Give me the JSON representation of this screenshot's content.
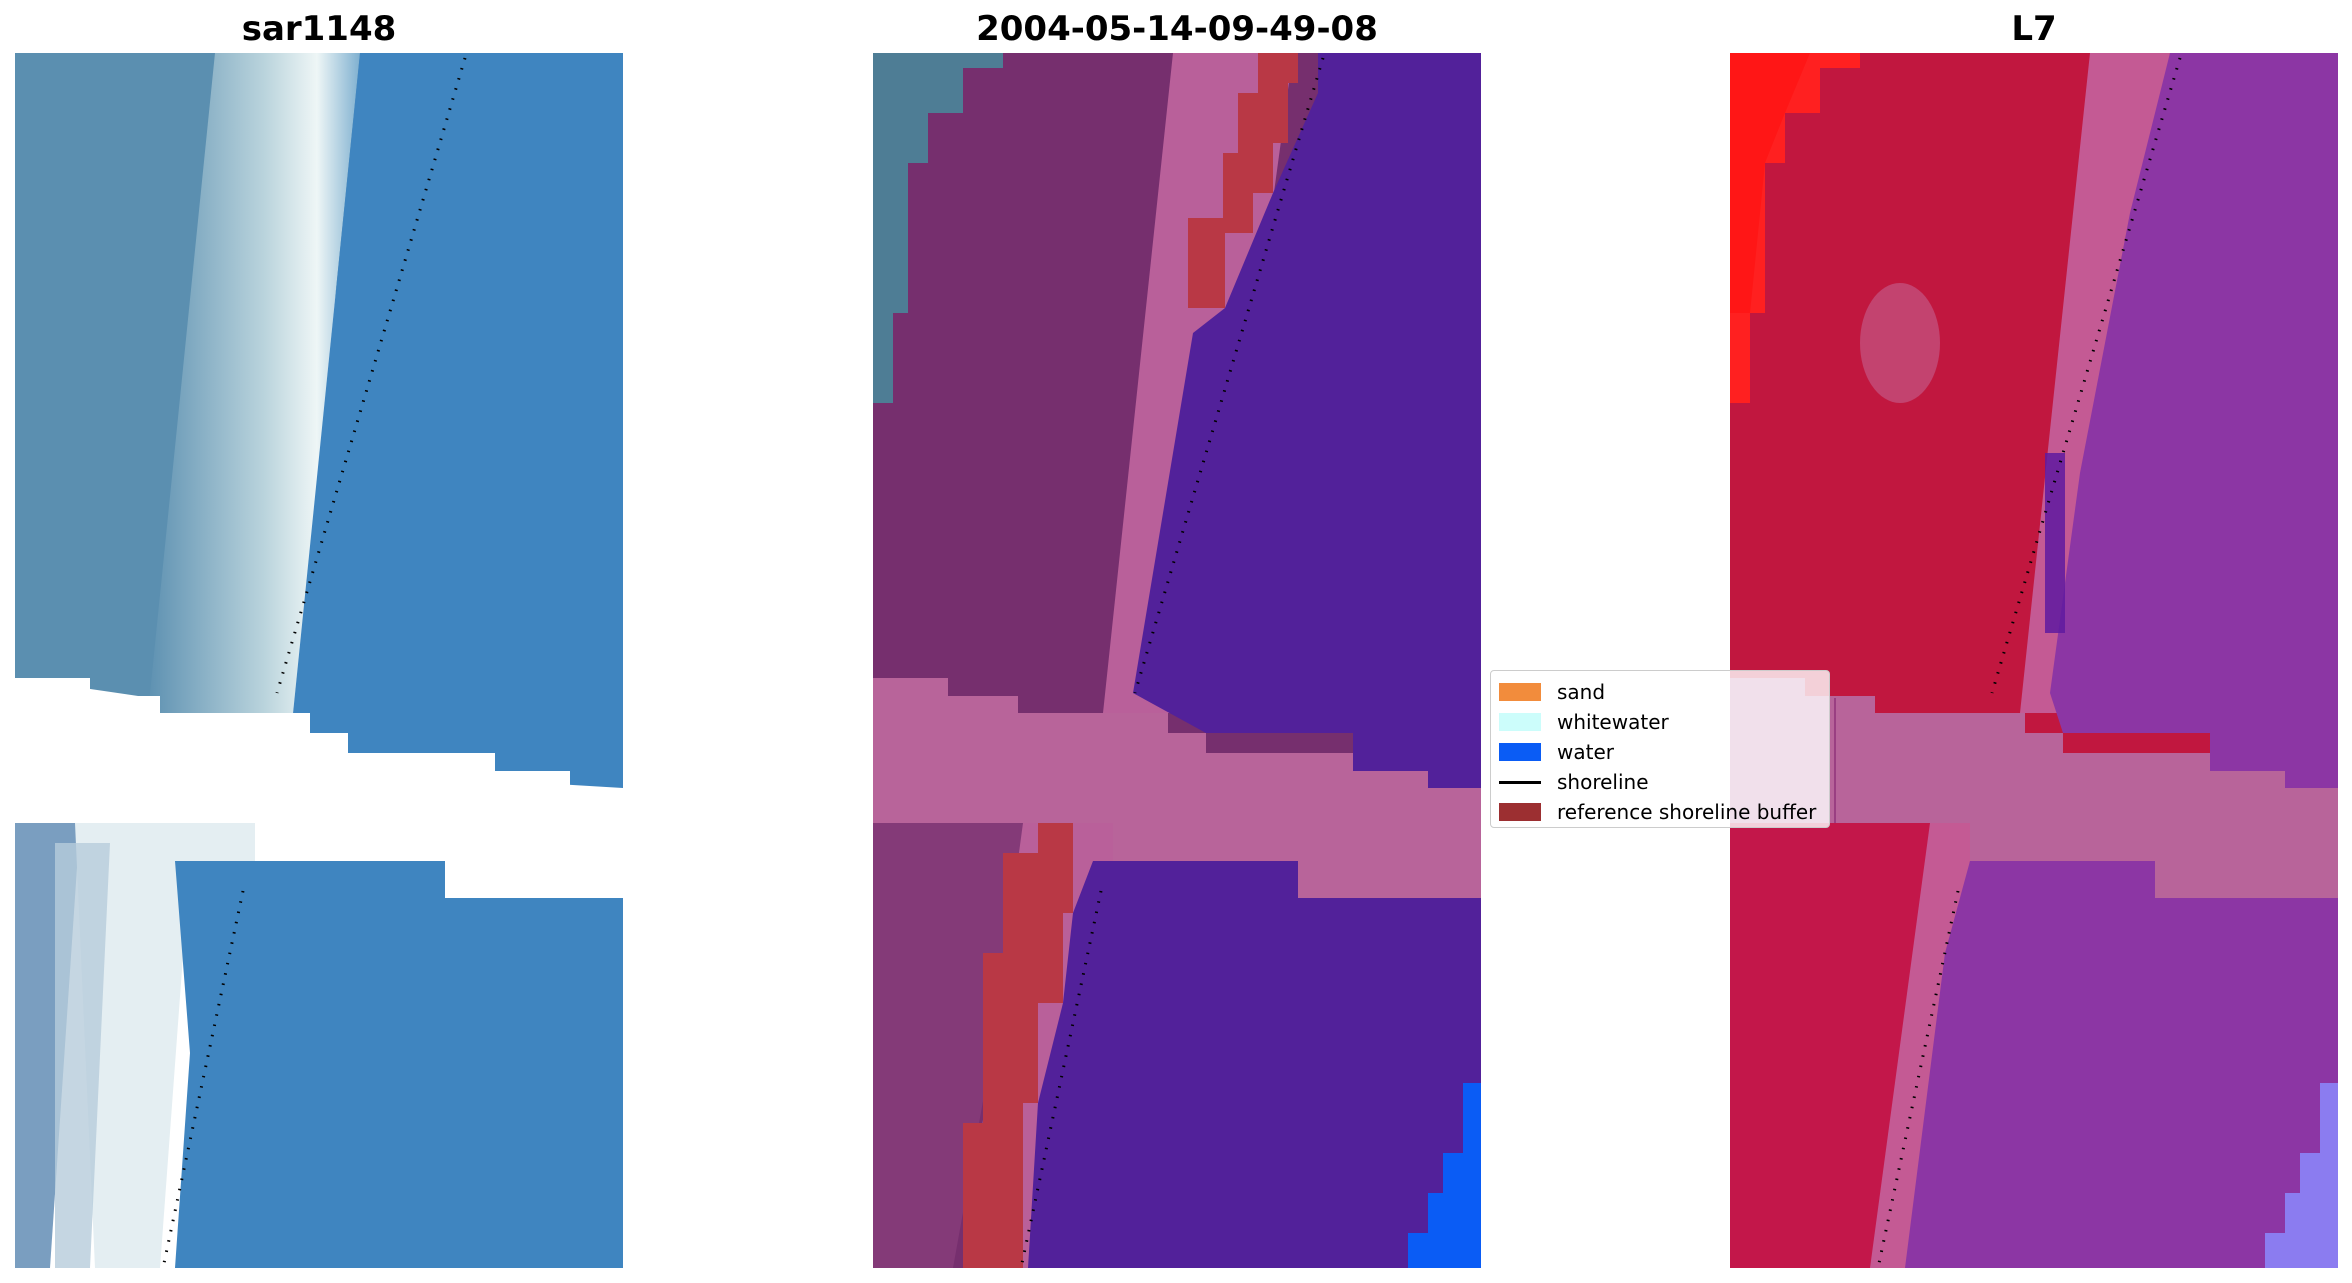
{
  "panels": [
    {
      "title": "sar1148"
    },
    {
      "title": "2004-05-14-09-49-08"
    },
    {
      "title": "L7"
    }
  ],
  "legend": {
    "items": [
      {
        "label": "sand",
        "color": "#f28c3c",
        "kind": "patch"
      },
      {
        "label": "whitewater",
        "color": "#ccfdfb",
        "kind": "patch"
      },
      {
        "label": "water",
        "color": "#0a5cf5",
        "kind": "patch"
      },
      {
        "label": "shoreline",
        "color": "#000000",
        "kind": "line"
      },
      {
        "label": "reference shoreline buffer",
        "color": "#9c2f31",
        "kind": "patch"
      }
    ]
  },
  "colors": {
    "rgb_land": "#5b8fb0",
    "rgb_beach_white": "#e8f2f4",
    "rgb_sea": "#3f85c0",
    "class_land": "#762f6e",
    "class_sea": "#52219a",
    "class_pink": "#b9609a",
    "class_buffer": "#b93845",
    "class_teal": "#4e7d95",
    "class_water": "#0a5cf5",
    "ndwi_red": "#c1173f",
    "ndwi_bright_red": "#ff1a1a",
    "ndwi_purple": "#8c36a4",
    "ndwi_light": "#8b7cf0",
    "band_pink": "#b8649a"
  }
}
